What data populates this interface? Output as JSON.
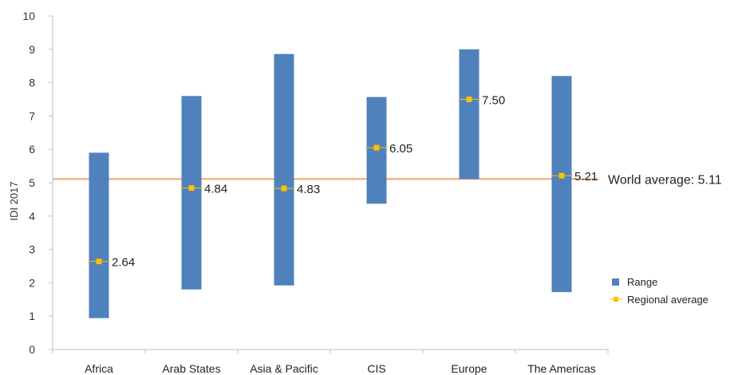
{
  "chart_data": {
    "type": "range",
    "ylabel": "IDI 2017",
    "ylim": [
      0,
      10
    ],
    "yticks": [
      0,
      1,
      2,
      3,
      4,
      5,
      6,
      7,
      8,
      9,
      10
    ],
    "categories": [
      "Africa",
      "Arab States",
      "Asia & Pacific",
      "CIS",
      "Europe",
      "The Americas"
    ],
    "series": [
      {
        "name": "Range",
        "color": "#4f81bd",
        "low": [
          0.94,
          1.8,
          1.92,
          4.37,
          5.11,
          1.72
        ],
        "high": [
          5.9,
          7.6,
          8.86,
          7.57,
          9.0,
          8.2
        ]
      },
      {
        "name": "Regional average",
        "color": "#ffc000",
        "values": [
          2.64,
          4.84,
          4.83,
          6.05,
          7.5,
          5.21
        ],
        "labels": [
          "2.64",
          "4.84",
          "4.83",
          "6.05",
          "7.50",
          "5.21"
        ]
      }
    ],
    "reference_line": {
      "label": "World average: 5.11",
      "value": 5.11,
      "color": "#f4a46a"
    },
    "legend": {
      "position": "right"
    },
    "grid": false
  }
}
